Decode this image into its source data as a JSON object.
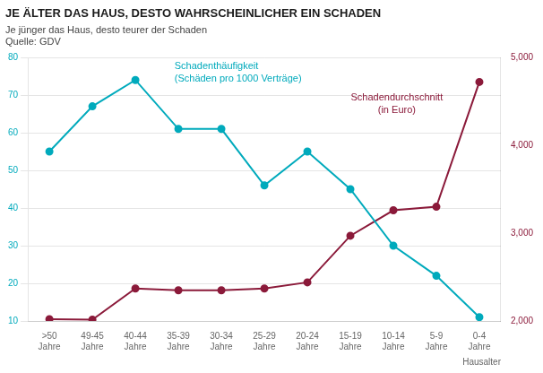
{
  "chart_data": {
    "type": "line",
    "title": "JE ÄLTER DAS HAUS, DESTO WAHRSCHEINLICHER EIN SCHADEN",
    "subtitle": "Je jünger das Haus, desto teurer der Schaden",
    "source": "Quelle: GDV",
    "x_label": "Hausalter",
    "categories": [
      ">50\nJahre",
      "49-45\nJahre",
      "40-44\nJahre",
      "35-39\nJahre",
      "30-34\nJahre",
      "25-29\nJahre",
      "20-24\nJahre",
      "15-19\nJahre",
      "10-14\nJahre",
      "5-9\nJahre",
      "0-4\nJahre"
    ],
    "series": [
      {
        "name": "Schadenthäufigkeit\n(Schäden pro 1000 Verträge)",
        "color": "#00AABC",
        "marker": "circle",
        "values": [
          55,
          67,
          74,
          61,
          61,
          46,
          55,
          45,
          30,
          22,
          11
        ]
      },
      {
        "name": "Schadendurchschnitt\n(in Euro)",
        "color": "#8B1A3A",
        "marker": "circle",
        "axis": "y2",
        "values": [
          2020,
          2015,
          2370,
          2350,
          2350,
          2370,
          2440,
          2970,
          3260,
          3300,
          4720
        ]
      }
    ],
    "ylim": [
      10,
      80
    ],
    "yticks": [
      10,
      20,
      30,
      40,
      50,
      60,
      70,
      80
    ],
    "y2lim": [
      2000,
      5000
    ],
    "y2ticks": [
      2000,
      3000,
      4000,
      5000
    ],
    "grid": true
  }
}
